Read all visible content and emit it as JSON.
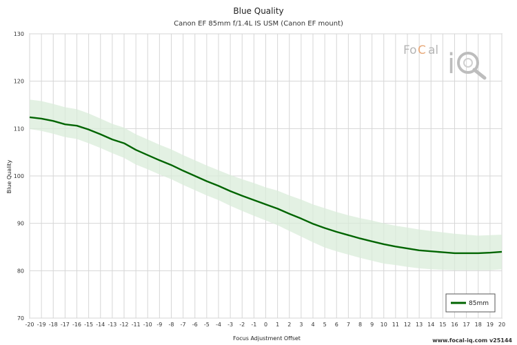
{
  "chart_data": {
    "type": "line",
    "title": "Blue Quality",
    "subtitle": "Canon EF 85mm f/1.4L IS USM (Canon EF mount)",
    "xlabel": "Focus Adjustment Offset",
    "ylabel": "Blue Quality",
    "xlim": [
      -20,
      20
    ],
    "ylim": [
      70,
      130
    ],
    "x_ticks": [
      -20,
      -19,
      -18,
      -17,
      -16,
      -15,
      -14,
      -13,
      -12,
      -11,
      -10,
      -9,
      -8,
      -7,
      -6,
      -5,
      -4,
      -3,
      -2,
      -1,
      0,
      1,
      2,
      3,
      4,
      5,
      6,
      7,
      8,
      9,
      10,
      11,
      12,
      13,
      14,
      15,
      16,
      17,
      18,
      19,
      20
    ],
    "y_ticks": [
      70,
      80,
      90,
      100,
      110,
      120,
      130
    ],
    "grid": true,
    "legend_position": "bottom-right",
    "series": [
      {
        "name": "85mm",
        "color": "#006400",
        "band_color": "#d9ecd9",
        "x": [
          -20,
          -19,
          -18,
          -17,
          -16,
          -15,
          -14,
          -13,
          -12,
          -11,
          -10,
          -9,
          -8,
          -7,
          -6,
          -5,
          -4,
          -3,
          -2,
          -1,
          0,
          1,
          2,
          3,
          4,
          5,
          6,
          7,
          8,
          9,
          10,
          11,
          12,
          13,
          14,
          15,
          16,
          17,
          18,
          19,
          20
        ],
        "values": [
          112.4,
          112.1,
          111.6,
          110.9,
          110.6,
          109.8,
          108.8,
          107.7,
          106.9,
          105.5,
          104.4,
          103.3,
          102.3,
          101.1,
          100.0,
          98.9,
          97.9,
          96.8,
          95.8,
          94.9,
          94.0,
          93.1,
          92.0,
          91.0,
          89.9,
          89.0,
          88.2,
          87.5,
          86.8,
          86.2,
          85.6,
          85.1,
          84.7,
          84.3,
          84.1,
          83.9,
          83.7,
          83.7,
          83.7,
          83.8,
          84.0
        ],
        "upper": [
          116.1,
          115.8,
          115.2,
          114.5,
          114.1,
          113.2,
          112.1,
          111.0,
          110.2,
          108.8,
          107.7,
          106.6,
          105.6,
          104.4,
          103.3,
          102.2,
          101.2,
          100.2,
          99.3,
          98.5,
          97.6,
          96.9,
          95.9,
          95.0,
          94.0,
          93.2,
          92.4,
          91.7,
          91.1,
          90.6,
          90.0,
          89.5,
          89.1,
          88.7,
          88.4,
          88.1,
          87.8,
          87.6,
          87.4,
          87.5,
          87.6
        ],
        "lower": [
          109.9,
          109.5,
          108.9,
          108.2,
          107.8,
          106.9,
          105.9,
          104.8,
          103.8,
          102.4,
          101.4,
          100.3,
          99.3,
          98.1,
          97.0,
          95.9,
          94.9,
          93.7,
          92.6,
          91.6,
          90.6,
          89.6,
          88.4,
          87.2,
          86.0,
          84.9,
          84.1,
          83.4,
          82.7,
          82.1,
          81.5,
          81.2,
          80.8,
          80.5,
          80.3,
          80.2,
          80.1,
          80.1,
          80.1,
          80.1,
          80.3
        ]
      }
    ]
  },
  "credit": "www.focal-iq.com  v25144",
  "logo_text": "FoCal iQ"
}
